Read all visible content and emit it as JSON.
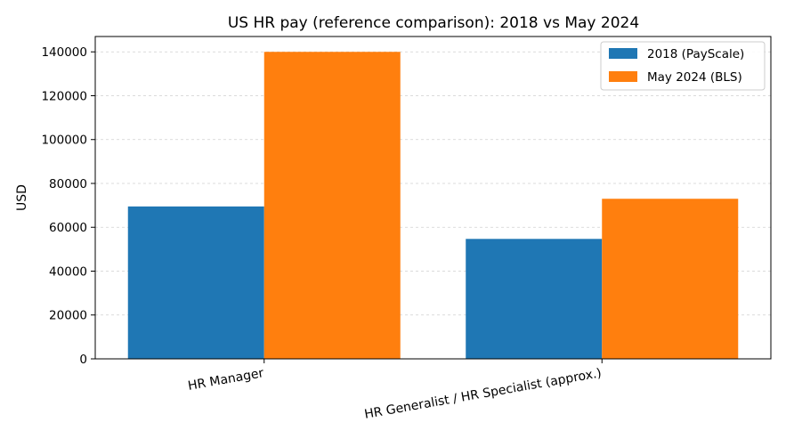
{
  "chart_data": {
    "type": "bar",
    "title": "US HR pay (reference comparison): 2018 vs May 2024",
    "xlabel": "",
    "ylabel": "USD",
    "categories": [
      "HR Manager",
      "HR Generalist / HR Specialist (approx.)"
    ],
    "series": [
      {
        "name": "2018 (PayScale)",
        "color": "#1f77b4",
        "values": [
          69500,
          54700
        ]
      },
      {
        "name": "May 2024 (BLS)",
        "color": "#ff7f0e",
        "values": [
          140000,
          73000
        ]
      }
    ],
    "ylim": [
      0,
      147000
    ],
    "yticks": [
      0,
      20000,
      40000,
      60000,
      80000,
      100000,
      120000,
      140000
    ],
    "grid": true,
    "legend_position": "top-right"
  }
}
